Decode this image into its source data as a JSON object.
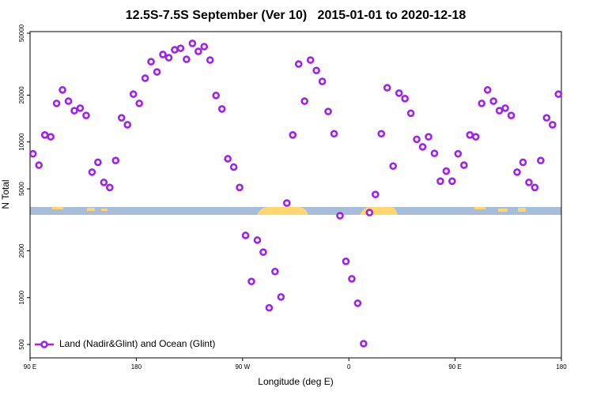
{
  "chart_data": {
    "type": "scatter",
    "title": "12.5S-7.5S September (Ver 10)   2015-01-01 to 2020-12-18",
    "xlabel": "Longitude (deg E)",
    "ylabel": "N Total",
    "log_y": true,
    "legend": "bottom-left",
    "xlim": [
      90,
      540
    ],
    "ylim": [
      410,
      51200
    ],
    "xticks": [
      {
        "value": 90,
        "label": "90 E"
      },
      180,
      {
        "value": 270,
        "label": "90 W"
      },
      {
        "value": 360,
        "label": "0"
      },
      {
        "value": 450,
        "label": "90 E"
      },
      {
        "value": 540,
        "label": "180"
      }
    ],
    "yticks": [
      500,
      1000,
      2000,
      5000,
      10000,
      20000,
      50000
    ],
    "x": [
      92.5,
      97.5,
      102.5,
      107.5,
      112.5,
      117.5,
      122.5,
      127.5,
      132.5,
      137.5,
      142.5,
      147.5,
      152.5,
      157.5,
      162.5,
      167.5,
      172.5,
      177.5,
      182.5,
      187.5,
      192.5,
      197.5,
      202.5,
      207.5,
      212.5,
      217.5,
      222.5,
      227.5,
      232.5,
      237.5,
      242.5,
      247.5,
      252.5,
      257.5,
      262.5,
      267.5,
      272.5,
      277.5,
      282.5,
      287.5,
      292.5,
      297.5,
      302.5,
      307.5,
      312.5,
      317.5,
      322.5,
      327.5,
      332.5,
      337.5,
      342.5,
      347.5,
      352.5,
      357.5,
      362.5,
      367.5,
      372.5,
      377.5,
      382.5,
      387.5,
      392.5,
      397.5,
      402.5,
      407.5,
      412.5,
      417.5,
      422.5,
      427.5,
      432.5,
      437.5,
      442.5,
      447.5,
      452.5,
      457.5,
      462.5,
      467.5,
      472.5,
      477.5,
      482.5,
      487.5,
      492.5,
      497.5,
      502.5,
      507.5,
      512.5,
      517.5,
      522.5,
      527.5,
      532.5,
      537.5
    ],
    "series": [
      {
        "name": "Land (Nadir&Glint) and Ocean (Glint)",
        "color": "#a020f0",
        "values": [
          8400,
          7100,
          11100,
          10800,
          17700,
          21600,
          18300,
          15900,
          16500,
          14800,
          6400,
          7400,
          5500,
          5100,
          7600,
          14300,
          12900,
          20300,
          17700,
          25700,
          32800,
          28200,
          36500,
          34800,
          39100,
          40000,
          34000,
          43000,
          38200,
          41000,
          33600,
          19900,
          16300,
          7800,
          6900,
          5100,
          2510,
          1270,
          2340,
          1960,
          860,
          1470,
          1010,
          4050,
          11100,
          31700,
          18300,
          33600,
          28800,
          24500,
          15700,
          11300,
          3360,
          1710,
          1320,
          920,
          506,
          3520,
          4600,
          11300,
          22300,
          7000,
          20600,
          19000,
          15300,
          10400,
          9300,
          10800,
          8450,
          5600,
          6500,
          5600,
          8400,
          7100,
          11100,
          10800,
          17700,
          21600,
          18300,
          15900,
          16500,
          14800,
          6400,
          7400,
          5500,
          5100,
          7600,
          14300,
          12900,
          20300
        ]
      }
    ]
  }
}
